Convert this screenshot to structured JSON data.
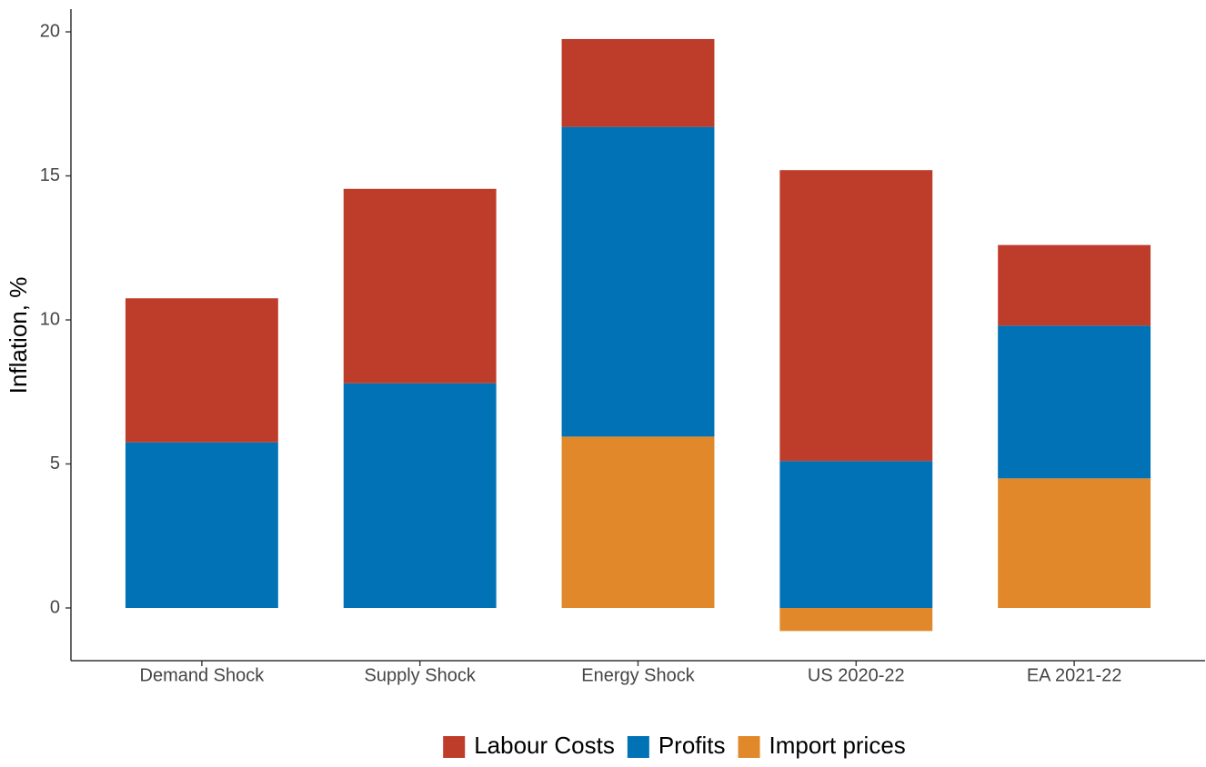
{
  "chart_data": {
    "type": "stacked-bar",
    "y_label": "Inflation, %",
    "categories": [
      "Demand Shock",
      "Supply Shock",
      "Energy Shock",
      "US 2020-22",
      "EA 2021-22"
    ],
    "series": [
      {
        "name": "Import prices",
        "color": "#e0882a",
        "values": [
          0,
          0,
          5.95,
          -0.8,
          4.5
        ]
      },
      {
        "name": "Profits",
        "color": "#0072b5",
        "values": [
          5.75,
          7.8,
          10.75,
          5.1,
          5.3
        ]
      },
      {
        "name": "Labour Costs",
        "color": "#be3c2a",
        "values": [
          5.0,
          6.75,
          3.05,
          10.1,
          2.8
        ]
      }
    ],
    "legend_order": [
      2,
      1,
      0
    ],
    "legend_position": "bottom",
    "ylim": [
      -1.83,
      20.79
    ],
    "yticks": [
      0,
      5,
      10,
      15,
      20
    ],
    "grid": false
  }
}
